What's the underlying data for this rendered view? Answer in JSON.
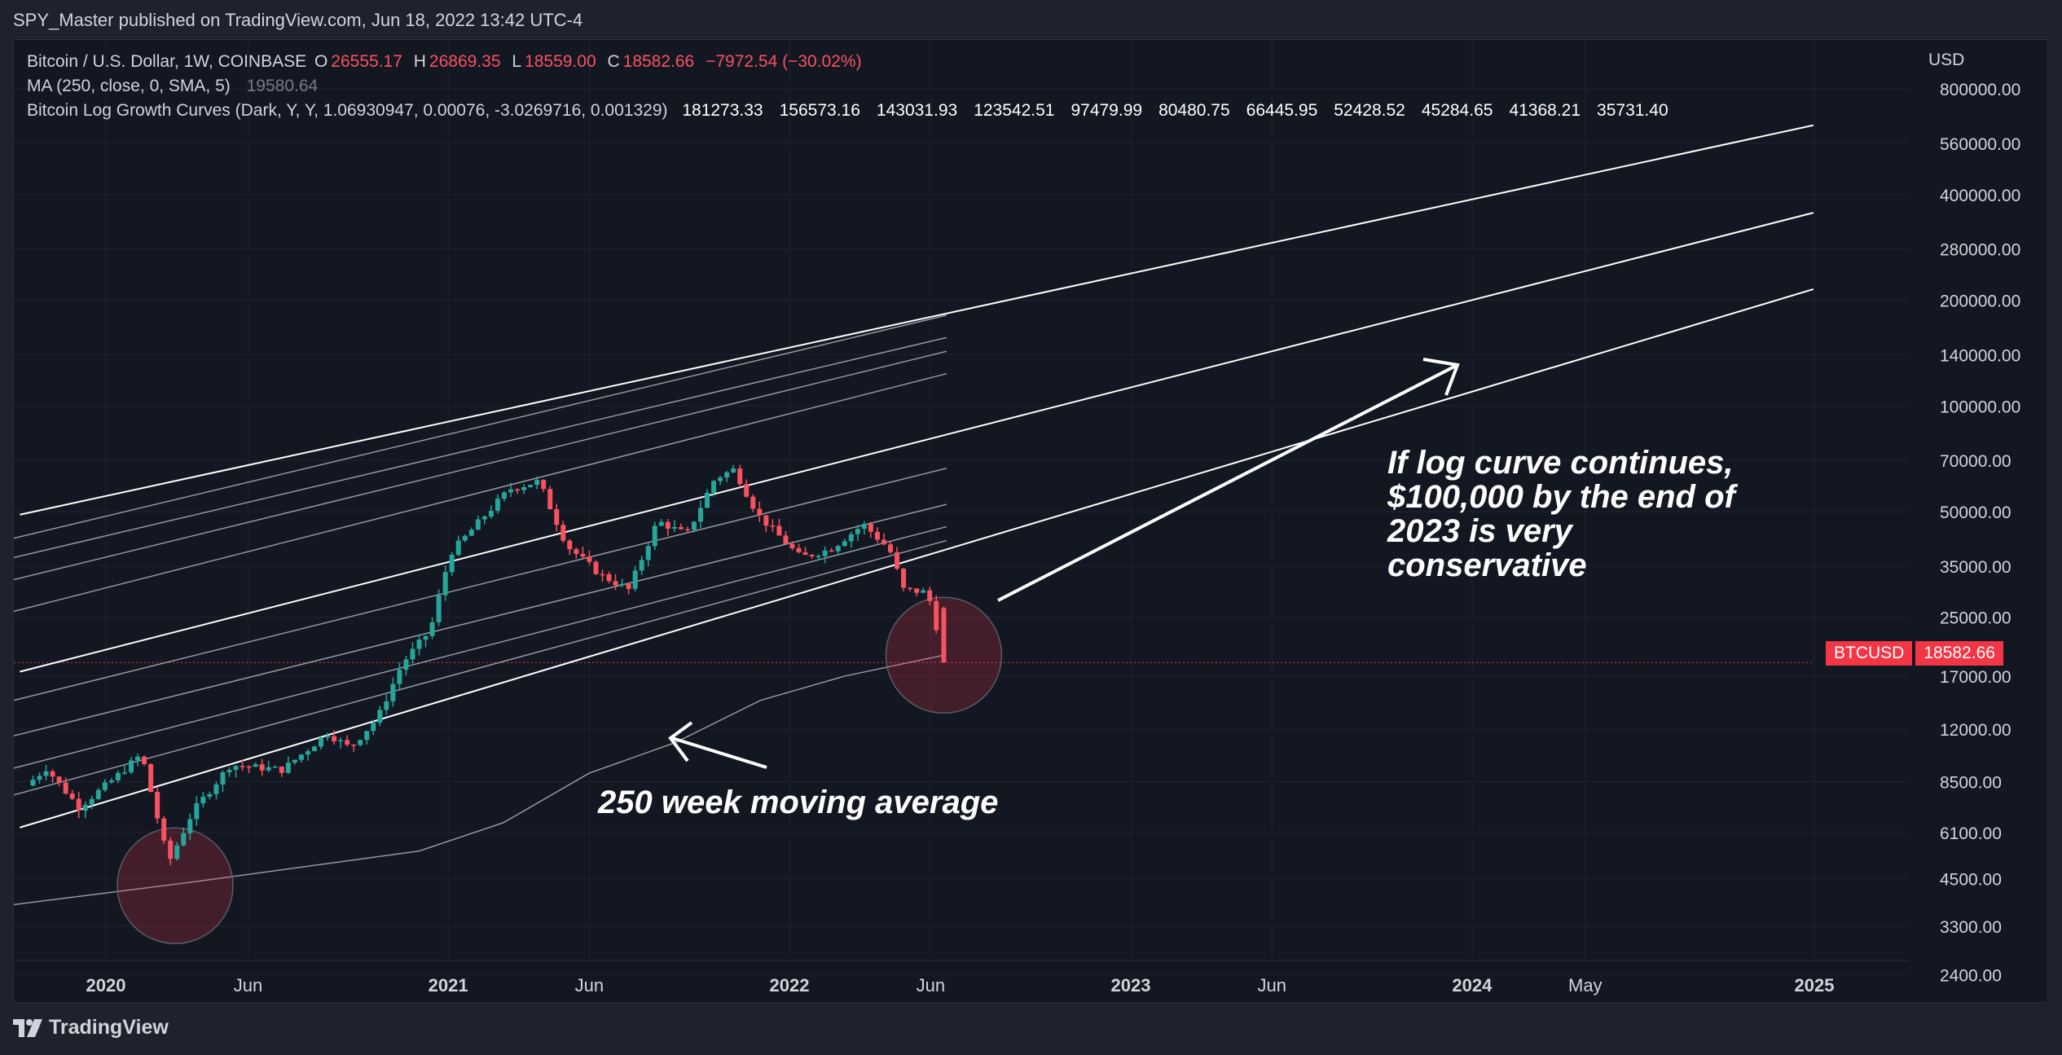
{
  "header": {
    "published": "SPY_Master published on TradingView.com, Jun 18, 2022 13:42 UTC-4"
  },
  "legend": {
    "symbol": "Bitcoin / U.S. Dollar, 1W, COINBASE",
    "o_label": "O",
    "o_value": "26555.17",
    "h_label": "H",
    "h_value": "26869.35",
    "l_label": "L",
    "l_value": "18559.00",
    "c_label": "C",
    "c_value": "18582.66",
    "change": "−7972.54 (−30.02%)",
    "ma_label": "MA (250, close, 0, SMA, 5)",
    "ma_value": "19580.64",
    "curves_label": "Bitcoin Log Growth Curves (Dark, Y, Y, 1.06930947, 0.00076, -3.0269716, 0.001329)",
    "curves_values": [
      "181273.33",
      "156573.16",
      "143031.93",
      "123542.51",
      "97479.99",
      "80480.75",
      "66445.95",
      "52428.52",
      "45284.65",
      "41368.21",
      "35731.40"
    ]
  },
  "annotations": {
    "moving_average": "250 week moving average",
    "log_curve_lines": [
      "If log curve continues,",
      "$100,000 by the end of",
      "2023 is very",
      "conservative"
    ]
  },
  "price_tag": {
    "symbol": "BTCUSD",
    "value": "18582.66"
  },
  "footer": {
    "brand": "TradingView"
  },
  "colors": {
    "up": "#26a69a",
    "down": "#f7525f",
    "background": "#131722",
    "price_tag": "#f23645"
  },
  "chart_data": {
    "type": "candlestick",
    "currency": "USD",
    "y_scale": "log",
    "y_ticks": [
      "800000.00",
      "560000.00",
      "400000.00",
      "280000.00",
      "200000.00",
      "140000.00",
      "100000.00",
      "70000.00",
      "50000.00",
      "35000.00",
      "25000.00",
      "17000.00",
      "12000.00",
      "8500.00",
      "6100.00",
      "4500.00",
      "3300.00",
      "2400.00"
    ],
    "x_ticks": [
      {
        "label": "2020",
        "bold": true
      },
      {
        "label": "Jun",
        "bold": false
      },
      {
        "label": "2021",
        "bold": true
      },
      {
        "label": "Jun",
        "bold": false
      },
      {
        "label": "2022",
        "bold": true
      },
      {
        "label": "Jun",
        "bold": false
      },
      {
        "label": "2023",
        "bold": true
      },
      {
        "label": "Jun",
        "bold": false
      },
      {
        "label": "2024",
        "bold": true
      },
      {
        "label": "May",
        "bold": false
      },
      {
        "label": "2025",
        "bold": true
      }
    ],
    "last_close": 18582.66,
    "path": [
      [
        "2019-10-15",
        8300
      ],
      [
        "2019-11-05",
        9300
      ],
      [
        "2019-12-10",
        7200
      ],
      [
        "2020-01-15",
        8600
      ],
      [
        "2020-02-15",
        10200
      ],
      [
        "2020-03-15",
        5000
      ],
      [
        "2020-04-10",
        7000
      ],
      [
        "2020-05-20",
        9500
      ],
      [
        "2020-07-15",
        9200
      ],
      [
        "2020-09-01",
        11700
      ],
      [
        "2020-09-25",
        10600
      ],
      [
        "2020-10-25",
        13000
      ],
      [
        "2020-11-20",
        18500
      ],
      [
        "2020-12-20",
        23000
      ],
      [
        "2021-01-10",
        38000
      ],
      [
        "2021-02-20",
        50000
      ],
      [
        "2021-03-15",
        58000
      ],
      [
        "2021-04-15",
        61000
      ],
      [
        "2021-05-15",
        40000
      ],
      [
        "2021-06-20",
        33000
      ],
      [
        "2021-07-20",
        30000
      ],
      [
        "2021-08-20",
        47000
      ],
      [
        "2021-09-20",
        43000
      ],
      [
        "2021-10-20",
        62000
      ],
      [
        "2021-11-10",
        66000
      ],
      [
        "2021-12-05",
        49000
      ],
      [
        "2022-01-20",
        37000
      ],
      [
        "2022-02-20",
        39000
      ],
      [
        "2022-03-28",
        46000
      ],
      [
        "2022-04-25",
        39000
      ],
      [
        "2022-05-10",
        30000
      ],
      [
        "2022-06-01",
        29500
      ],
      [
        "2022-06-12",
        26500
      ],
      [
        "2022-06-18",
        18582.66
      ]
    ],
    "ma_250w": [
      [
        "2019-10-01",
        3800
      ],
      [
        "2020-04-01",
        4400
      ],
      [
        "2020-12-01",
        5400
      ],
      [
        "2021-03-01",
        6500
      ],
      [
        "2021-06-01",
        9000
      ],
      [
        "2021-09-01",
        11000
      ],
      [
        "2021-12-01",
        14500
      ],
      [
        "2022-03-01",
        17000
      ],
      [
        "2022-06-18",
        19580.64
      ]
    ],
    "growth_curves": {
      "bright": [
        {
          "start": [
            "2019-10-01",
            49000
          ],
          "end": [
            "2024-12-31",
            630000
          ]
        },
        {
          "start": [
            "2019-10-01",
            17500
          ],
          "end": [
            "2024-12-31",
            355000
          ]
        },
        {
          "start": [
            "2019-10-01",
            6300
          ],
          "end": [
            "2024-12-31",
            215000
          ]
        }
      ],
      "faint_end": "2022-06-18",
      "faint": [
        {
          "start": 42000,
          "end": 181273.33
        },
        {
          "start": 37000,
          "end": 156573.16
        },
        {
          "start": 32000,
          "end": 143031.93
        },
        {
          "start": 26000,
          "end": 123542.51
        },
        {
          "start": 14500,
          "end": 66445.95
        },
        {
          "start": 11500,
          "end": 52428.52
        },
        {
          "start": 9300,
          "end": 45284.65
        },
        {
          "start": 7800,
          "end": 41368.21
        }
      ]
    }
  }
}
